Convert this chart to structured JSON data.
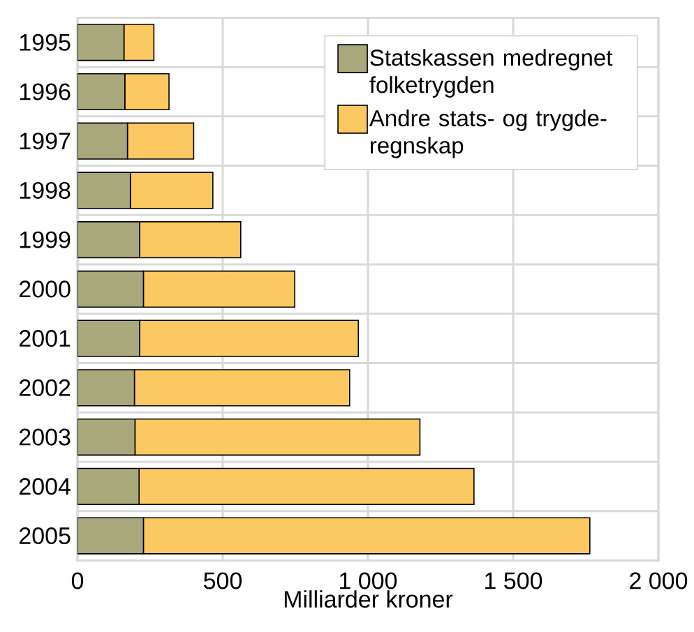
{
  "chart_data": {
    "type": "bar",
    "orientation": "horizontal",
    "stacked": true,
    "categories": [
      "1995",
      "1996",
      "1997",
      "1998",
      "1999",
      "2000",
      "2001",
      "2002",
      "2003",
      "2004",
      "2005"
    ],
    "series": [
      {
        "name": "Statskassen medregnet folketrygden",
        "color": "#a9a87c",
        "values": [
          160,
          163,
          172,
          182,
          214,
          227,
          214,
          196,
          198,
          212,
          227
        ]
      },
      {
        "name": "Andre stats- og trygde-regnskap",
        "color": "#fcc862",
        "values": [
          103,
          152,
          228,
          284,
          348,
          521,
          753,
          741,
          981,
          1153,
          1537
        ]
      }
    ],
    "xlabel": "Milliarder kroner",
    "xlim": [
      0,
      2000
    ],
    "xticks": [
      0,
      500,
      {
        "value": 1000,
        "label": "1 000"
      },
      {
        "value": 1500,
        "label": "1 500"
      },
      {
        "value": 2000,
        "label": "2 000"
      }
    ],
    "grid": true,
    "legend": "top right"
  }
}
